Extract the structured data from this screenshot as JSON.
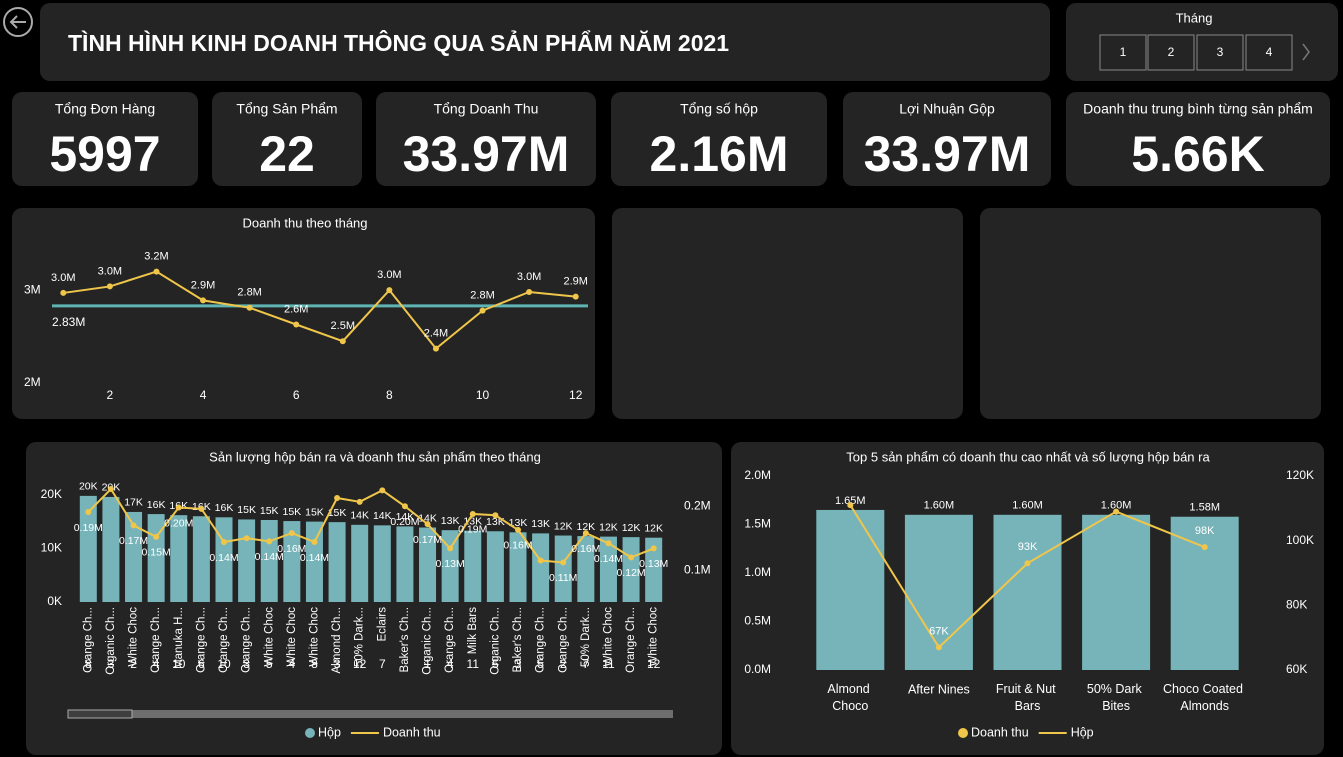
{
  "header": {
    "title": "TÌNH HÌNH KINH DOANH THÔNG QUA SẢN PHẨM NĂM 2021"
  },
  "slicer": {
    "title": "Tháng",
    "items": [
      "1",
      "2",
      "3",
      "4"
    ]
  },
  "kpis": [
    {
      "label": "Tổng Đơn Hàng",
      "value": "5997"
    },
    {
      "label": "Tổng Sản Phẩm",
      "value": "22"
    },
    {
      "label": "Tổng Doanh Thu",
      "value": "33.97M"
    },
    {
      "label": "Tổng số hộp",
      "value": "2.16M"
    },
    {
      "label": "Lợi Nhuận Gộp",
      "value": "33.97M"
    },
    {
      "label": "Doanh thu trung bình từng sản phẩm",
      "value": "5.66K"
    }
  ],
  "chart_data": [
    {
      "type": "line",
      "title": "Doanh thu theo tháng",
      "x": [
        1,
        2,
        3,
        4,
        5,
        6,
        7,
        8,
        9,
        10,
        11,
        12
      ],
      "values": [
        2.97,
        3.04,
        3.2,
        2.89,
        2.81,
        2.63,
        2.45,
        3.0,
        2.37,
        2.78,
        2.98,
        2.93
      ],
      "value_labels": [
        "3.0M",
        "3.0M",
        "3.2M",
        "2.9M",
        "2.8M",
        "2.6M",
        "2.5M",
        "3.0M",
        "2.4M",
        "2.8M",
        "3.0M",
        "2.9M"
      ],
      "color": "#f0c64a",
      "xlim": [
        0.5,
        12.5
      ],
      "xticks": [
        2,
        4,
        6,
        8,
        10,
        12
      ],
      "ylim": [
        2,
        3.4
      ],
      "yticks": [
        {
          "value": 2,
          "label": "2M"
        },
        {
          "value": 3,
          "label": "3M"
        }
      ],
      "reference": {
        "value": 2.83,
        "label": "2.83M",
        "color": "#5fb3b3"
      }
    },
    {
      "type": "combo",
      "title": "Sản lượng hộp bán ra và doanh thu sản phẩm theo tháng",
      "categories": [
        "Orange Ch...",
        "Organic Ch...",
        "White Choc",
        "Orange Ch...",
        "Manuka H...",
        "Orange Ch...",
        "Orange Ch...",
        "Orange Ch...",
        "White Choc",
        "White Choc",
        "White Choc",
        "Almond Ch...",
        "50% Dark...",
        "Eclairs",
        "Baker's Ch...",
        "Organic Ch...",
        "Orange Ch...",
        "Milk Bars",
        "Organic Ch...",
        "Baker's Ch...",
        "Orange Ch...",
        "Orange Ch...",
        "50% Dark...",
        "White Choc",
        "Orange Ch...",
        "White Choc"
      ],
      "groups": [
        "8",
        "3",
        "2",
        "4",
        "10",
        "6",
        "10",
        "3",
        "5",
        "4",
        "8",
        "3",
        "12",
        "7",
        null,
        "1",
        "4",
        "11",
        "5",
        "3",
        "5",
        "2",
        "7",
        "11",
        null,
        "12"
      ],
      "series": [
        {
          "name": "Hộp",
          "type": "bar",
          "color": "#76b4ba",
          "values": [
            19.8,
            19.6,
            16.8,
            16.4,
            16.2,
            16.0,
            15.8,
            15.4,
            15.3,
            15.1,
            15.0,
            14.9,
            14.4,
            14.3,
            14.1,
            13.9,
            13.4,
            13.3,
            13.2,
            13.0,
            12.8,
            12.4,
            12.3,
            12.2,
            12.1,
            12.0
          ],
          "value_labels": [
            "20K",
            "20K",
            "17K",
            "16K",
            "16K",
            "16K",
            "16K",
            "15K",
            "15K",
            "15K",
            "15K",
            "15K",
            "14K",
            "14K",
            "14K",
            "14K",
            "13K",
            "13K",
            "13K",
            "13K",
            "13K",
            "12K",
            "12K",
            "12K",
            "12K",
            "12K"
          ]
        },
        {
          "name": "Doanh thu",
          "type": "line",
          "axis": "y2",
          "color": "#f0c64a",
          "values": [
            0.191,
            0.227,
            0.17,
            0.152,
            0.198,
            0.196,
            0.144,
            0.15,
            0.145,
            0.158,
            0.144,
            0.213,
            0.207,
            0.225,
            0.2,
            0.172,
            0.134,
            0.188,
            0.186,
            0.163,
            0.115,
            0.112,
            0.158,
            0.142,
            0.12,
            0.134
          ],
          "value_labels": [
            "0.19M",
            null,
            "0.17M",
            "0.15M",
            "0.20M",
            null,
            "0.14M",
            null,
            "0.14M",
            "0.16M",
            "0.14M",
            null,
            null,
            null,
            "0.20M",
            "0.17M",
            "0.13M",
            "0.19M",
            null,
            "0.16M",
            null,
            "0.11M",
            "0.16M",
            "0.14M",
            "0.12M",
            "0.13M"
          ]
        }
      ],
      "ylim": [
        0,
        25
      ],
      "yticks": [
        {
          "value": 0,
          "label": "0K"
        },
        {
          "value": 10,
          "label": "10K"
        },
        {
          "value": 20,
          "label": "20K"
        }
      ],
      "y2lim": [
        0.05,
        0.26
      ],
      "y2ticks": [
        {
          "value": 0.1,
          "label": "0.1M"
        },
        {
          "value": 0.2,
          "label": "0.2M"
        }
      ]
    },
    {
      "type": "combo",
      "title": "Top 5 sản phẩm có doanh thu cao nhất và số lượng hộp bán ra",
      "categories": [
        "Almond Choco",
        "After Nines",
        "Fruit & Nut Bars",
        "50% Dark Bites",
        "Choco Coated Almonds"
      ],
      "series": [
        {
          "name": "Doanh thu",
          "type": "bar",
          "color": "#76b4ba",
          "values": [
            1.65,
            1.6,
            1.6,
            1.6,
            1.58
          ],
          "value_labels": [
            "1.65M",
            "1.60M",
            "1.60M",
            "1.60M",
            "1.58M"
          ]
        },
        {
          "name": "Hộp",
          "type": "line",
          "axis": "y2",
          "color": "#f0c64a",
          "values": [
            111,
            67,
            93,
            109,
            98
          ],
          "value_labels": [
            null,
            "67K",
            "93K",
            null,
            "98K"
          ]
        }
      ],
      "ylim": [
        0,
        2
      ],
      "yticks": [
        {
          "value": 0,
          "label": "0.0M"
        },
        {
          "value": 0.5,
          "label": "0.5M"
        },
        {
          "value": 1,
          "label": "1.0M"
        },
        {
          "value": 1.5,
          "label": "1.5M"
        },
        {
          "value": 2,
          "label": "2.0M"
        }
      ],
      "y2lim": [
        60,
        120
      ],
      "y2ticks": [
        {
          "value": 60,
          "label": "60K"
        },
        {
          "value": 80,
          "label": "80K"
        },
        {
          "value": 100,
          "label": "100K"
        },
        {
          "value": 120,
          "label": "120K"
        }
      ]
    }
  ]
}
